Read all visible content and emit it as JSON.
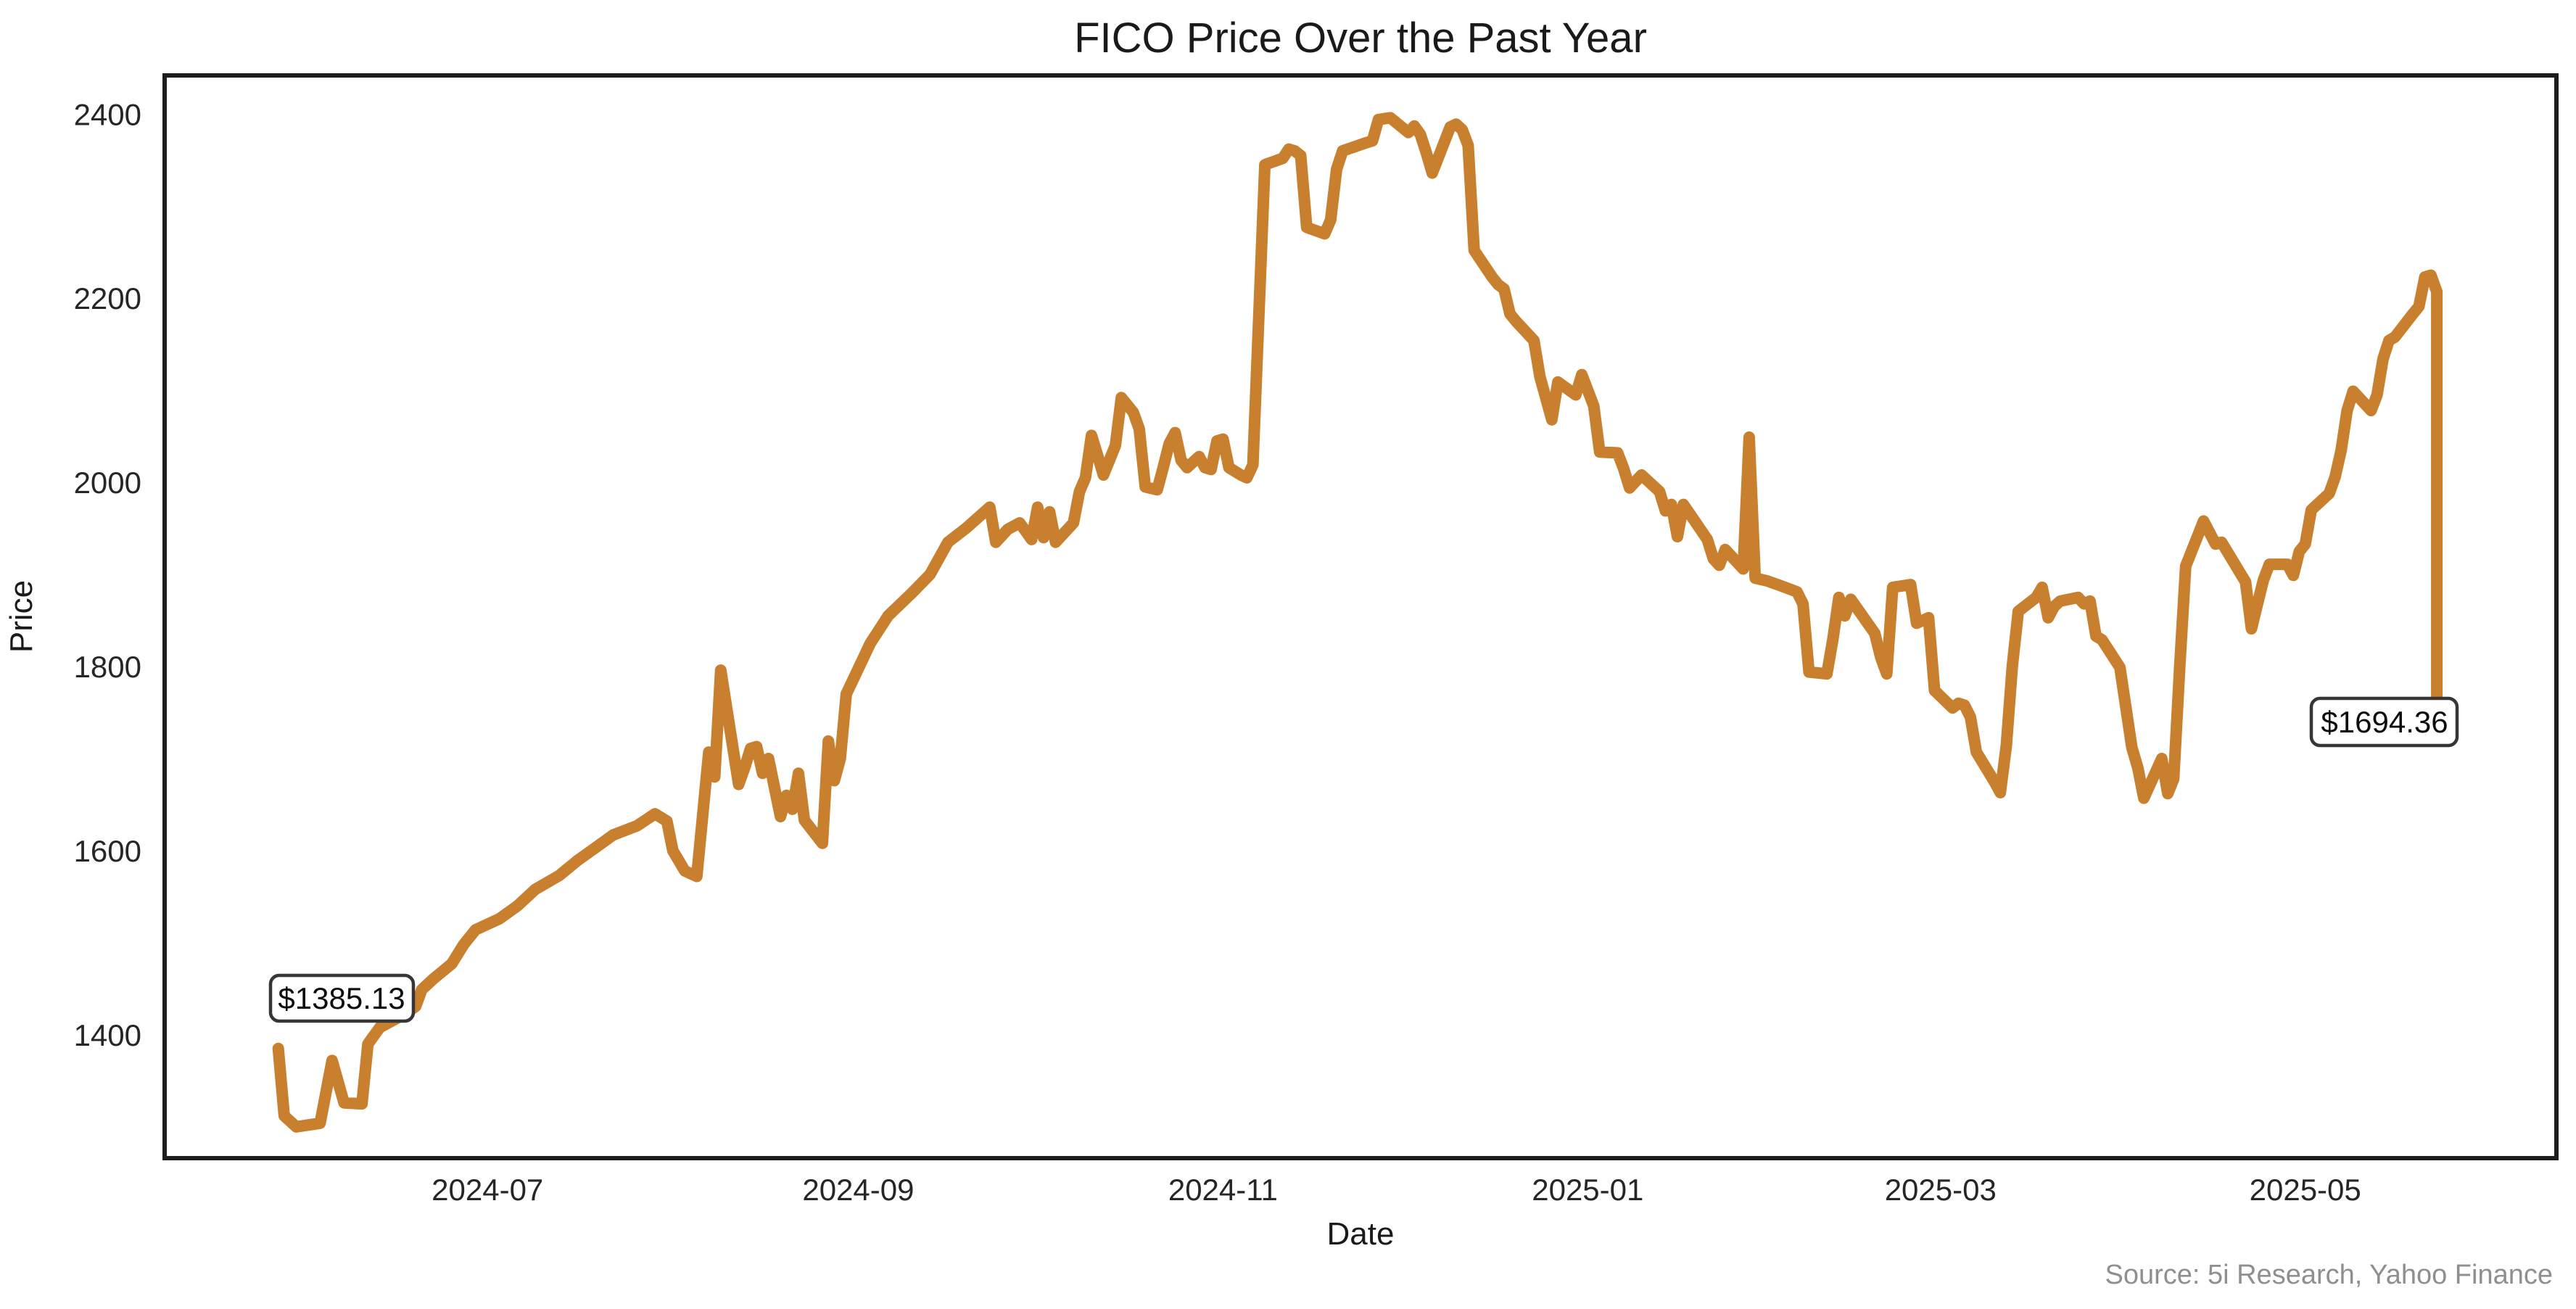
{
  "window": {
    "background": "#ffffff"
  },
  "chart_data": {
    "type": "line",
    "title": "FICO Price Over the Past Year",
    "xlabel": "Date",
    "ylabel": "Price",
    "source_note": "Source: 5i Research, Yahoo Finance",
    "line_color": "#c87f2e",
    "plot_border_color": "#1c1c1c",
    "background_color": "#ffffff",
    "grid": false,
    "legend": "none",
    "xlim": [
      "2024-05-08",
      "2025-06-12"
    ],
    "ylim": [
      1266,
      2442
    ],
    "x_ticks": [
      {
        "date": "2024-07-01",
        "label": "2024-07"
      },
      {
        "date": "2024-09-01",
        "label": "2024-09"
      },
      {
        "date": "2024-11-01",
        "label": "2024-11"
      },
      {
        "date": "2025-01-01",
        "label": "2025-01"
      },
      {
        "date": "2025-03-01",
        "label": "2025-03"
      },
      {
        "date": "2025-05-01",
        "label": "2025-05"
      }
    ],
    "y_ticks": [
      {
        "value": 1400,
        "label": "1400"
      },
      {
        "value": 1600,
        "label": "1600"
      },
      {
        "value": 1800,
        "label": "1800"
      },
      {
        "value": 2000,
        "label": "2000"
      },
      {
        "value": 2200,
        "label": "2200"
      },
      {
        "value": 2400,
        "label": "2400"
      }
    ],
    "annotations": [
      {
        "text": "$1385.13",
        "date": "2024-05-27",
        "price": 1385.13
      },
      {
        "text": "$1694.36",
        "date": "2025-05-23",
        "price": 1694.36
      }
    ],
    "series": [
      {
        "name": "FICO",
        "points": [
          [
            "2024-05-27",
            1385.13
          ],
          [
            "2024-05-28",
            1312
          ],
          [
            "2024-05-30",
            1300
          ],
          [
            "2024-06-03",
            1304
          ],
          [
            "2024-06-05",
            1372
          ],
          [
            "2024-06-07",
            1326
          ],
          [
            "2024-06-10",
            1325
          ],
          [
            "2024-06-11",
            1390
          ],
          [
            "2024-06-13",
            1408
          ],
          [
            "2024-06-17",
            1422
          ],
          [
            "2024-06-19",
            1431
          ],
          [
            "2024-06-20",
            1449
          ],
          [
            "2024-06-22",
            1461
          ],
          [
            "2024-06-25",
            1477
          ],
          [
            "2024-06-27",
            1498
          ],
          [
            "2024-06-29",
            1514
          ],
          [
            "2024-07-03",
            1526
          ],
          [
            "2024-07-06",
            1540
          ],
          [
            "2024-07-09",
            1558
          ],
          [
            "2024-07-13",
            1573
          ],
          [
            "2024-07-16",
            1589
          ],
          [
            "2024-07-19",
            1603
          ],
          [
            "2024-07-22",
            1617
          ],
          [
            "2024-07-26",
            1627
          ],
          [
            "2024-07-29",
            1640
          ],
          [
            "2024-07-31",
            1632
          ],
          [
            "2024-08-01",
            1600
          ],
          [
            "2024-08-03",
            1578
          ],
          [
            "2024-08-05",
            1572
          ],
          [
            "2024-08-07",
            1707
          ],
          [
            "2024-08-08",
            1680
          ],
          [
            "2024-08-09",
            1796
          ],
          [
            "2024-08-12",
            1672
          ],
          [
            "2024-08-13",
            1690
          ],
          [
            "2024-08-14",
            1711
          ],
          [
            "2024-08-15",
            1713
          ],
          [
            "2024-08-16",
            1684
          ],
          [
            "2024-08-17",
            1700
          ],
          [
            "2024-08-19",
            1637
          ],
          [
            "2024-08-20",
            1660
          ],
          [
            "2024-08-21",
            1645
          ],
          [
            "2024-08-22",
            1684
          ],
          [
            "2024-08-23",
            1633
          ],
          [
            "2024-08-26",
            1608
          ],
          [
            "2024-08-27",
            1719
          ],
          [
            "2024-08-28",
            1676
          ],
          [
            "2024-08-29",
            1700
          ],
          [
            "2024-08-30",
            1770
          ],
          [
            "2024-09-03",
            1825
          ],
          [
            "2024-09-06",
            1855
          ],
          [
            "2024-09-10",
            1880
          ],
          [
            "2024-09-13",
            1900
          ],
          [
            "2024-09-16",
            1935
          ],
          [
            "2024-09-19",
            1950
          ],
          [
            "2024-09-23",
            1973
          ],
          [
            "2024-09-24",
            1935
          ],
          [
            "2024-09-26",
            1949
          ],
          [
            "2024-09-28",
            1956
          ],
          [
            "2024-09-30",
            1938
          ],
          [
            "2024-10-01",
            1973
          ],
          [
            "2024-10-02",
            1940
          ],
          [
            "2024-10-03",
            1968
          ],
          [
            "2024-10-04",
            1935
          ],
          [
            "2024-10-07",
            1956
          ],
          [
            "2024-10-08",
            1990
          ],
          [
            "2024-10-09",
            2005
          ],
          [
            "2024-10-10",
            2051
          ],
          [
            "2024-10-11",
            2030
          ],
          [
            "2024-10-12",
            2008
          ],
          [
            "2024-10-14",
            2040
          ],
          [
            "2024-10-15",
            2092
          ],
          [
            "2024-10-17",
            2076
          ],
          [
            "2024-10-18",
            2058
          ],
          [
            "2024-10-19",
            1995
          ],
          [
            "2024-10-21",
            1992
          ],
          [
            "2024-10-22",
            2016
          ],
          [
            "2024-10-23",
            2042
          ],
          [
            "2024-10-24",
            2054
          ],
          [
            "2024-10-25",
            2024
          ],
          [
            "2024-10-26",
            2016
          ],
          [
            "2024-10-28",
            2028
          ],
          [
            "2024-10-29",
            2016
          ],
          [
            "2024-10-30",
            2014
          ],
          [
            "2024-10-31",
            2045
          ],
          [
            "2024-11-01",
            2047
          ],
          [
            "2024-11-02",
            2016
          ],
          [
            "2024-11-04",
            2008
          ],
          [
            "2024-11-05",
            2005
          ],
          [
            "2024-11-06",
            2019
          ],
          [
            "2024-11-08",
            2345
          ],
          [
            "2024-11-11",
            2352
          ],
          [
            "2024-11-12",
            2362
          ],
          [
            "2024-11-13",
            2360
          ],
          [
            "2024-11-14",
            2355
          ],
          [
            "2024-11-15",
            2277
          ],
          [
            "2024-11-18",
            2270
          ],
          [
            "2024-11-19",
            2285
          ],
          [
            "2024-11-20",
            2340
          ],
          [
            "2024-11-21",
            2360
          ],
          [
            "2024-11-25",
            2369
          ],
          [
            "2024-11-26",
            2371
          ],
          [
            "2024-11-27",
            2394
          ],
          [
            "2024-11-29",
            2396
          ],
          [
            "2024-12-02",
            2380
          ],
          [
            "2024-12-03",
            2387
          ],
          [
            "2024-12-04",
            2378
          ],
          [
            "2024-12-05",
            2358
          ],
          [
            "2024-12-06",
            2336
          ],
          [
            "2024-12-09",
            2386
          ],
          [
            "2024-12-10",
            2389
          ],
          [
            "2024-12-11",
            2383
          ],
          [
            "2024-12-12",
            2366
          ],
          [
            "2024-12-13",
            2252
          ],
          [
            "2024-12-16",
            2223
          ],
          [
            "2024-12-17",
            2215
          ],
          [
            "2024-12-18",
            2210
          ],
          [
            "2024-12-19",
            2183
          ],
          [
            "2024-12-20",
            2175
          ],
          [
            "2024-12-23",
            2154
          ],
          [
            "2024-12-24",
            2115
          ],
          [
            "2024-12-26",
            2068
          ],
          [
            "2024-12-27",
            2109
          ],
          [
            "2024-12-30",
            2095
          ],
          [
            "2024-12-31",
            2117
          ],
          [
            "2025-01-02",
            2083
          ],
          [
            "2025-01-03",
            2033
          ],
          [
            "2025-01-06",
            2032
          ],
          [
            "2025-01-07",
            2015
          ],
          [
            "2025-01-08",
            1994
          ],
          [
            "2025-01-10",
            2008
          ],
          [
            "2025-01-13",
            1990
          ],
          [
            "2025-01-14",
            1969
          ],
          [
            "2025-01-15",
            1976
          ],
          [
            "2025-01-16",
            1941
          ],
          [
            "2025-01-17",
            1976
          ],
          [
            "2025-01-21",
            1938
          ],
          [
            "2025-01-22",
            1917
          ],
          [
            "2025-01-23",
            1910
          ],
          [
            "2025-01-24",
            1927
          ],
          [
            "2025-01-27",
            1906
          ],
          [
            "2025-01-28",
            2049
          ],
          [
            "2025-01-29",
            1896
          ],
          [
            "2025-01-31",
            1893
          ],
          [
            "2025-02-03",
            1886
          ],
          [
            "2025-02-05",
            1881
          ],
          [
            "2025-02-06",
            1868
          ],
          [
            "2025-02-07",
            1794
          ],
          [
            "2025-02-10",
            1792
          ],
          [
            "2025-02-11",
            1830
          ],
          [
            "2025-02-12",
            1875
          ],
          [
            "2025-02-13",
            1855
          ],
          [
            "2025-02-14",
            1873
          ],
          [
            "2025-02-18",
            1836
          ],
          [
            "2025-02-19",
            1810
          ],
          [
            "2025-02-20",
            1792
          ],
          [
            "2025-02-21",
            1886
          ],
          [
            "2025-02-24",
            1889
          ],
          [
            "2025-02-25",
            1847
          ],
          [
            "2025-02-26",
            1850
          ],
          [
            "2025-02-27",
            1853
          ],
          [
            "2025-02-28",
            1774
          ],
          [
            "2025-03-03",
            1755
          ],
          [
            "2025-03-04",
            1760
          ],
          [
            "2025-03-05",
            1758
          ],
          [
            "2025-03-06",
            1745
          ],
          [
            "2025-03-07",
            1707
          ],
          [
            "2025-03-10",
            1675
          ],
          [
            "2025-03-11",
            1663
          ],
          [
            "2025-03-12",
            1714
          ],
          [
            "2025-03-13",
            1800
          ],
          [
            "2025-03-14",
            1860
          ],
          [
            "2025-03-17",
            1875
          ],
          [
            "2025-03-18",
            1886
          ],
          [
            "2025-03-19",
            1853
          ],
          [
            "2025-03-20",
            1865
          ],
          [
            "2025-03-21",
            1871
          ],
          [
            "2025-03-24",
            1875
          ],
          [
            "2025-03-25",
            1868
          ],
          [
            "2025-03-26",
            1871
          ],
          [
            "2025-03-27",
            1833
          ],
          [
            "2025-03-28",
            1829
          ],
          [
            "2025-03-31",
            1799
          ],
          [
            "2025-04-02",
            1712
          ],
          [
            "2025-04-03",
            1690
          ],
          [
            "2025-04-04",
            1657
          ],
          [
            "2025-04-07",
            1700
          ],
          [
            "2025-04-08",
            1662
          ],
          [
            "2025-04-09",
            1678
          ],
          [
            "2025-04-10",
            1800
          ],
          [
            "2025-04-11",
            1909
          ],
          [
            "2025-04-14",
            1958
          ],
          [
            "2025-04-16",
            1933
          ],
          [
            "2025-04-17",
            1935
          ],
          [
            "2025-04-21",
            1892
          ],
          [
            "2025-04-22",
            1841
          ],
          [
            "2025-04-23",
            1868
          ],
          [
            "2025-04-24",
            1894
          ],
          [
            "2025-04-25",
            1911
          ],
          [
            "2025-04-28",
            1911
          ],
          [
            "2025-04-29",
            1899
          ],
          [
            "2025-04-30",
            1925
          ],
          [
            "2025-05-01",
            1933
          ],
          [
            "2025-05-02",
            1970
          ],
          [
            "2025-05-05",
            1988
          ],
          [
            "2025-05-06",
            2006
          ],
          [
            "2025-05-07",
            2035
          ],
          [
            "2025-05-08",
            2078
          ],
          [
            "2025-05-09",
            2099
          ],
          [
            "2025-05-12",
            2078
          ],
          [
            "2025-05-13",
            2095
          ],
          [
            "2025-05-14",
            2134
          ],
          [
            "2025-05-15",
            2154
          ],
          [
            "2025-05-16",
            2158
          ],
          [
            "2025-05-19",
            2183
          ],
          [
            "2025-05-20",
            2191
          ],
          [
            "2025-05-21",
            2223
          ],
          [
            "2025-05-22",
            2225
          ],
          [
            "2025-05-23",
            2207
          ],
          [
            "2025-05-23",
            1694.36
          ]
        ]
      }
    ]
  }
}
